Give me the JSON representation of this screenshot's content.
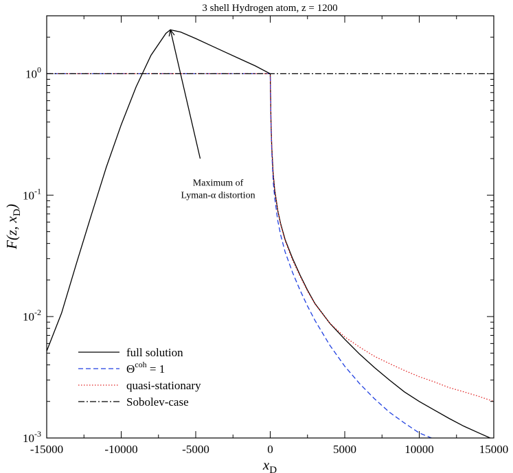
{
  "chart_data": {
    "type": "line",
    "title": "3 shell Hydrogen atom, z = 1200",
    "xlabel": "x_D",
    "ylabel": "F(z, x_D)",
    "xlim": [
      -15000,
      15000
    ],
    "ylim": [
      0.001,
      3
    ],
    "yscale": "log",
    "grid": false,
    "legend_position": "bottom-left",
    "x_ticks": [
      -15000,
      -10000,
      -5000,
      0,
      5000,
      10000,
      15000
    ],
    "x_tick_labels": [
      "-15000",
      "-10000",
      "-5000",
      "0",
      "5000",
      "10000",
      "15000"
    ],
    "y_ticks": [
      0.001,
      0.01,
      0.1,
      1
    ],
    "y_tick_labels": [
      {
        "base": "10",
        "exp": "-3"
      },
      {
        "base": "10",
        "exp": "-2"
      },
      {
        "base": "10",
        "exp": "-1"
      },
      {
        "base": "10",
        "exp": "0"
      }
    ],
    "series": [
      {
        "name": "full solution",
        "color": "#000000",
        "dash": "solid",
        "x": [
          -15000,
          -14000,
          -13000,
          -12000,
          -11000,
          -10000,
          -9000,
          -8000,
          -7000,
          -6700,
          -6000,
          -5000,
          -4000,
          -3000,
          -2000,
          -1000,
          0,
          50,
          100,
          200,
          300,
          500,
          700,
          1000,
          1500,
          2000,
          2500,
          3000,
          4000,
          5000,
          6000,
          7000,
          8000,
          9000,
          10000,
          11000,
          12000,
          13000,
          14000,
          15000
        ],
        "y": [
          0.0052,
          0.0107,
          0.0275,
          0.069,
          0.17,
          0.38,
          0.78,
          1.42,
          2.15,
          2.3,
          2.2,
          1.95,
          1.71,
          1.5,
          1.32,
          1.16,
          1.0,
          0.4,
          0.25,
          0.15,
          0.11,
          0.075,
          0.058,
          0.043,
          0.03,
          0.022,
          0.0165,
          0.0128,
          0.0088,
          0.0065,
          0.0049,
          0.0038,
          0.003,
          0.0024,
          0.002,
          0.0017,
          0.00145,
          0.00125,
          0.0011,
          0.00097
        ]
      },
      {
        "name": "Θcoh = 1",
        "color": "#1f3fe0",
        "dash": "dashed",
        "x": [
          -15000,
          0,
          50,
          100,
          200,
          300,
          500,
          700,
          1000,
          1500,
          2000,
          2500,
          3000,
          4000,
          5000,
          6000,
          7000,
          8000,
          9000,
          10000,
          11000,
          11500
        ],
        "y": [
          1.0,
          1.0,
          0.38,
          0.23,
          0.13,
          0.095,
          0.062,
          0.047,
          0.034,
          0.023,
          0.0165,
          0.0122,
          0.0093,
          0.0058,
          0.0039,
          0.0028,
          0.0021,
          0.00163,
          0.00133,
          0.0011,
          0.00098,
          0.00095
        ]
      },
      {
        "name": "quasi-stationary",
        "color": "#e02020",
        "dash": "dotted",
        "x": [
          -15000,
          0,
          50,
          100,
          200,
          300,
          500,
          700,
          1000,
          1500,
          2000,
          2500,
          3000,
          4000,
          5000,
          6000,
          7000,
          8000,
          9000,
          10000,
          11000,
          12000,
          13000,
          14000,
          15000
        ],
        "y": [
          1.0,
          1.0,
          0.4,
          0.25,
          0.15,
          0.11,
          0.075,
          0.057,
          0.042,
          0.029,
          0.0215,
          0.0162,
          0.0127,
          0.0088,
          0.0068,
          0.0056,
          0.0047,
          0.0041,
          0.0036,
          0.0032,
          0.0029,
          0.0026,
          0.0024,
          0.0022,
          0.002
        ]
      },
      {
        "name": "Sobolev-case",
        "color": "#000000",
        "dash": "dashdot",
        "x": [
          -15000,
          15000
        ],
        "y": [
          1.0,
          1.0
        ]
      }
    ],
    "annotations": [
      {
        "lines": [
          "Maximum of",
          "Lyman-α distortion"
        ],
        "text_x": -3500,
        "text_y": 0.12,
        "arrow_from": [
          -4700,
          0.2
        ],
        "arrow_to": [
          -6700,
          2.3
        ]
      }
    ]
  }
}
